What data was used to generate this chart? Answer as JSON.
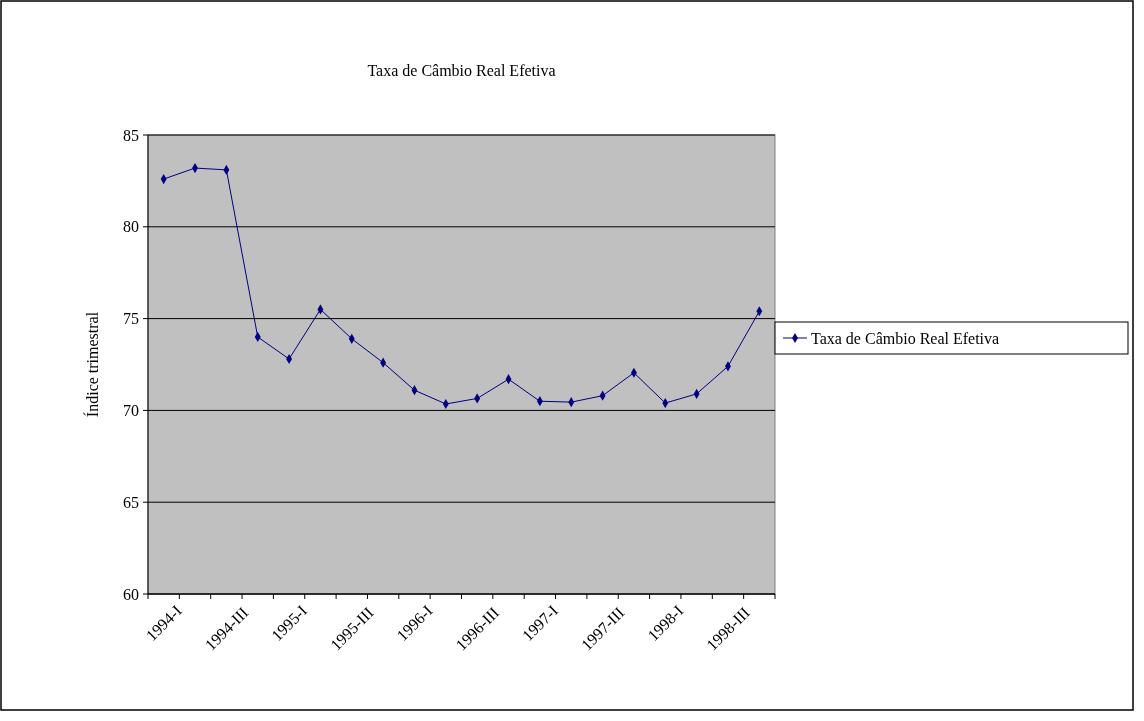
{
  "chart_data": {
    "type": "line",
    "title": "Taxa de Câmbio Real Efetiva",
    "ylabel": "Índice trimestral",
    "categories": [
      "1994-I",
      null,
      "1994-III",
      null,
      "1995-I",
      null,
      "1995-III",
      null,
      "1996-I",
      null,
      "1996-III",
      null,
      "1997-I",
      null,
      "1997-III",
      null,
      "1998-I",
      null,
      "1998-III",
      null
    ],
    "series": [
      {
        "name": "Taxa de Câmbio Real Efetiva",
        "color": "#000080",
        "values": [
          82.6,
          83.2,
          83.1,
          74.0,
          72.8,
          75.5,
          73.9,
          72.6,
          71.1,
          70.35,
          70.65,
          71.7,
          70.5,
          70.45,
          70.8,
          72.05,
          70.4,
          70.9,
          72.4,
          75.4
        ]
      }
    ],
    "ylim": [
      60,
      85
    ],
    "yticks": [
      60,
      65,
      70,
      75,
      80,
      85
    ],
    "grid": "y",
    "legend": "right",
    "marker": "diamond",
    "line_style": "solid"
  }
}
